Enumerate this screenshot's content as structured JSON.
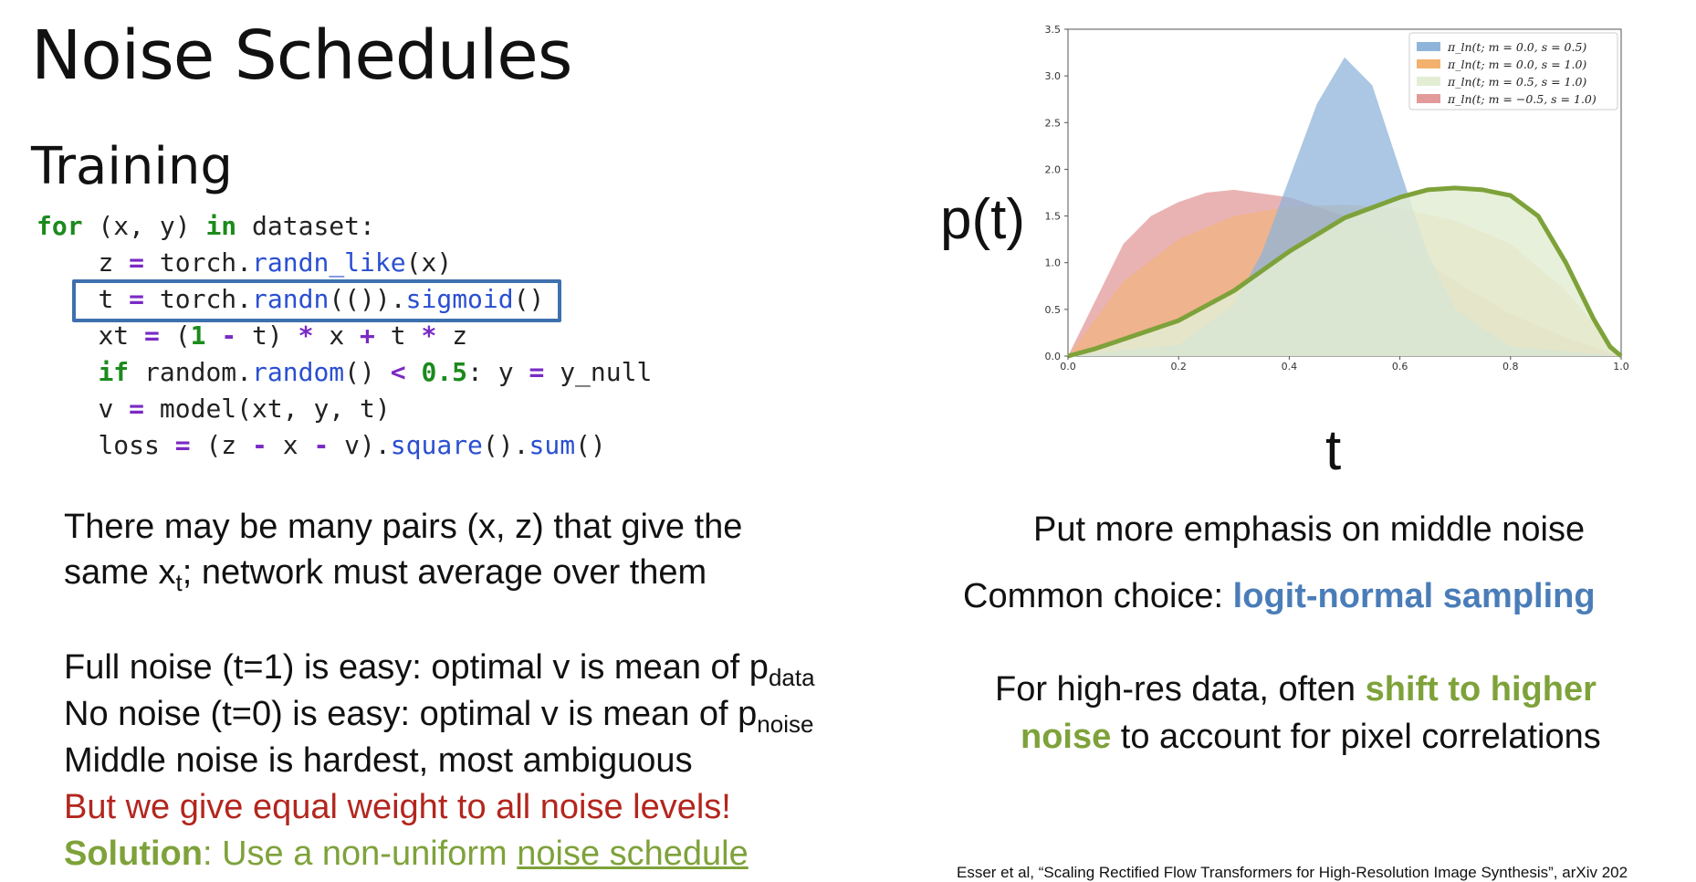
{
  "slide": {
    "title": "Noise Schedules",
    "section": "Training"
  },
  "code": {
    "l1": {
      "kw": "for",
      "t1": " (x, y) ",
      "kw2": "in",
      "t2": " dataset:"
    },
    "l2": {
      "a": "z ",
      "op": "=",
      "b": " torch.",
      "fn": "randn_like",
      "c": "(x)"
    },
    "l3": {
      "a": "t ",
      "op": "=",
      "b": " torch.",
      "fn": "randn",
      "c": "(()).",
      "fn2": "sigmoid",
      "d": "()"
    },
    "l4": {
      "a": "xt ",
      "op1": "=",
      "b": " (",
      "num": "1",
      "c": " ",
      "op2": "-",
      "d": " t) ",
      "op3": "*",
      "e": " x ",
      "op4": "+",
      "f": " t ",
      "op5": "*",
      "g": " z"
    },
    "l5": {
      "kw": "if",
      "a": " random.",
      "fn": "random",
      "b": "() ",
      "op1": "<",
      "c": " ",
      "num": "0.5",
      "d": ": y ",
      "op2": "=",
      "e": " y_null"
    },
    "l6": {
      "a": "v ",
      "op": "=",
      "b": " model(xt, y, t)"
    },
    "l7": {
      "a": "loss ",
      "op1": "=",
      "b": " (z ",
      "op2": "-",
      "c": " x ",
      "op3": "-",
      "d": " v).",
      "fn": "square",
      "e": "().",
      "fn2": "sum",
      "f": "()"
    }
  },
  "left_text": {
    "p1_line1": "There may be many pairs (x, z) that give the",
    "p1_line2_a": "same x",
    "p1_line2_sub": "t",
    "p1_line2_b": "; network must average over them",
    "full_noise_a": "Full noise (t=1) is easy: optimal v is mean of p",
    "full_noise_sub": "data",
    "no_noise_a": "No noise (t=0) is easy: optimal v is mean of p",
    "no_noise_sub": "noise",
    "middle": "Middle noise is hardest, most ambiguous",
    "equal_weight": "But we give equal weight to all noise levels!",
    "solution_bold": "Solution",
    "solution_rest": ": Use a non-uniform ",
    "solution_link": "noise schedule"
  },
  "right_text": {
    "emphasis": "Put more emphasis on middle noise",
    "common_a": "Common choice: ",
    "common_b": "logit-normal sampling",
    "highres_a": "For high-res data, often ",
    "highres_b": "shift to higher",
    "highres_c": "noise",
    "highres_d": " to account for pixel correlations",
    "ylabel_big": "p(t)",
    "xlabel_big": "t",
    "citation": "Esser et al, “Scaling Rectified Flow Transformers for High-Resolution Image Synthesis”, arXiv 202"
  },
  "colors": {
    "accent_green": "#7ea23a",
    "accent_blue": "#4a7db8",
    "accent_red": "#b3261e",
    "box_blue": "#3e70ad"
  },
  "chart_data": {
    "type": "area",
    "xlim": [
      0.0,
      1.0
    ],
    "ylim": [
      0.0,
      3.5
    ],
    "xticks": [
      "0.0",
      "0.2",
      "0.4",
      "0.6",
      "0.8",
      "1.0"
    ],
    "yticks": [
      "0.0",
      "0.5",
      "1.0",
      "1.5",
      "2.0",
      "2.5",
      "3.0",
      "3.5"
    ],
    "legend_position": "top-right",
    "grid": false,
    "series": [
      {
        "name": "π_ln(t; m = 0.0, s = 0.5)",
        "color": "#8fb4d9",
        "x": [
          0.0,
          0.2,
          0.3,
          0.35,
          0.4,
          0.45,
          0.5,
          0.55,
          0.6,
          0.65,
          0.7,
          0.8,
          1.0
        ],
        "y": [
          0.0,
          0.12,
          0.55,
          1.1,
          1.9,
          2.7,
          3.2,
          2.9,
          2.0,
          1.1,
          0.5,
          0.1,
          0.0
        ]
      },
      {
        "name": "π_ln(t; m = 0.0, s = 1.0)",
        "color": "#f2b26e",
        "x": [
          0.0,
          0.1,
          0.2,
          0.3,
          0.4,
          0.5,
          0.6,
          0.7,
          0.8,
          0.9,
          1.0
        ],
        "y": [
          0.0,
          0.8,
          1.25,
          1.5,
          1.6,
          1.62,
          1.58,
          1.45,
          1.2,
          0.7,
          0.0
        ]
      },
      {
        "name": "π_ln(t; m = 0.5, s = 1.0)",
        "color": "#e3edd3",
        "x": [
          0.0,
          0.05,
          0.1,
          0.2,
          0.3,
          0.4,
          0.5,
          0.6,
          0.65,
          0.7,
          0.75,
          0.8,
          0.85,
          0.9,
          0.95,
          0.98,
          1.0
        ],
        "y": [
          0.0,
          0.08,
          0.18,
          0.38,
          0.7,
          1.12,
          1.48,
          1.7,
          1.78,
          1.8,
          1.78,
          1.72,
          1.5,
          1.0,
          0.4,
          0.1,
          0.0
        ]
      },
      {
        "name": "π_ln(t; m = −0.5, s = 1.0)",
        "color": "#e39a9a",
        "x": [
          0.0,
          0.05,
          0.1,
          0.15,
          0.2,
          0.25,
          0.3,
          0.4,
          0.5,
          0.6,
          0.7,
          0.8,
          0.9,
          1.0
        ],
        "y": [
          0.0,
          0.6,
          1.2,
          1.5,
          1.65,
          1.75,
          1.78,
          1.7,
          1.5,
          1.2,
          0.8,
          0.45,
          0.2,
          0.0
        ]
      }
    ]
  }
}
